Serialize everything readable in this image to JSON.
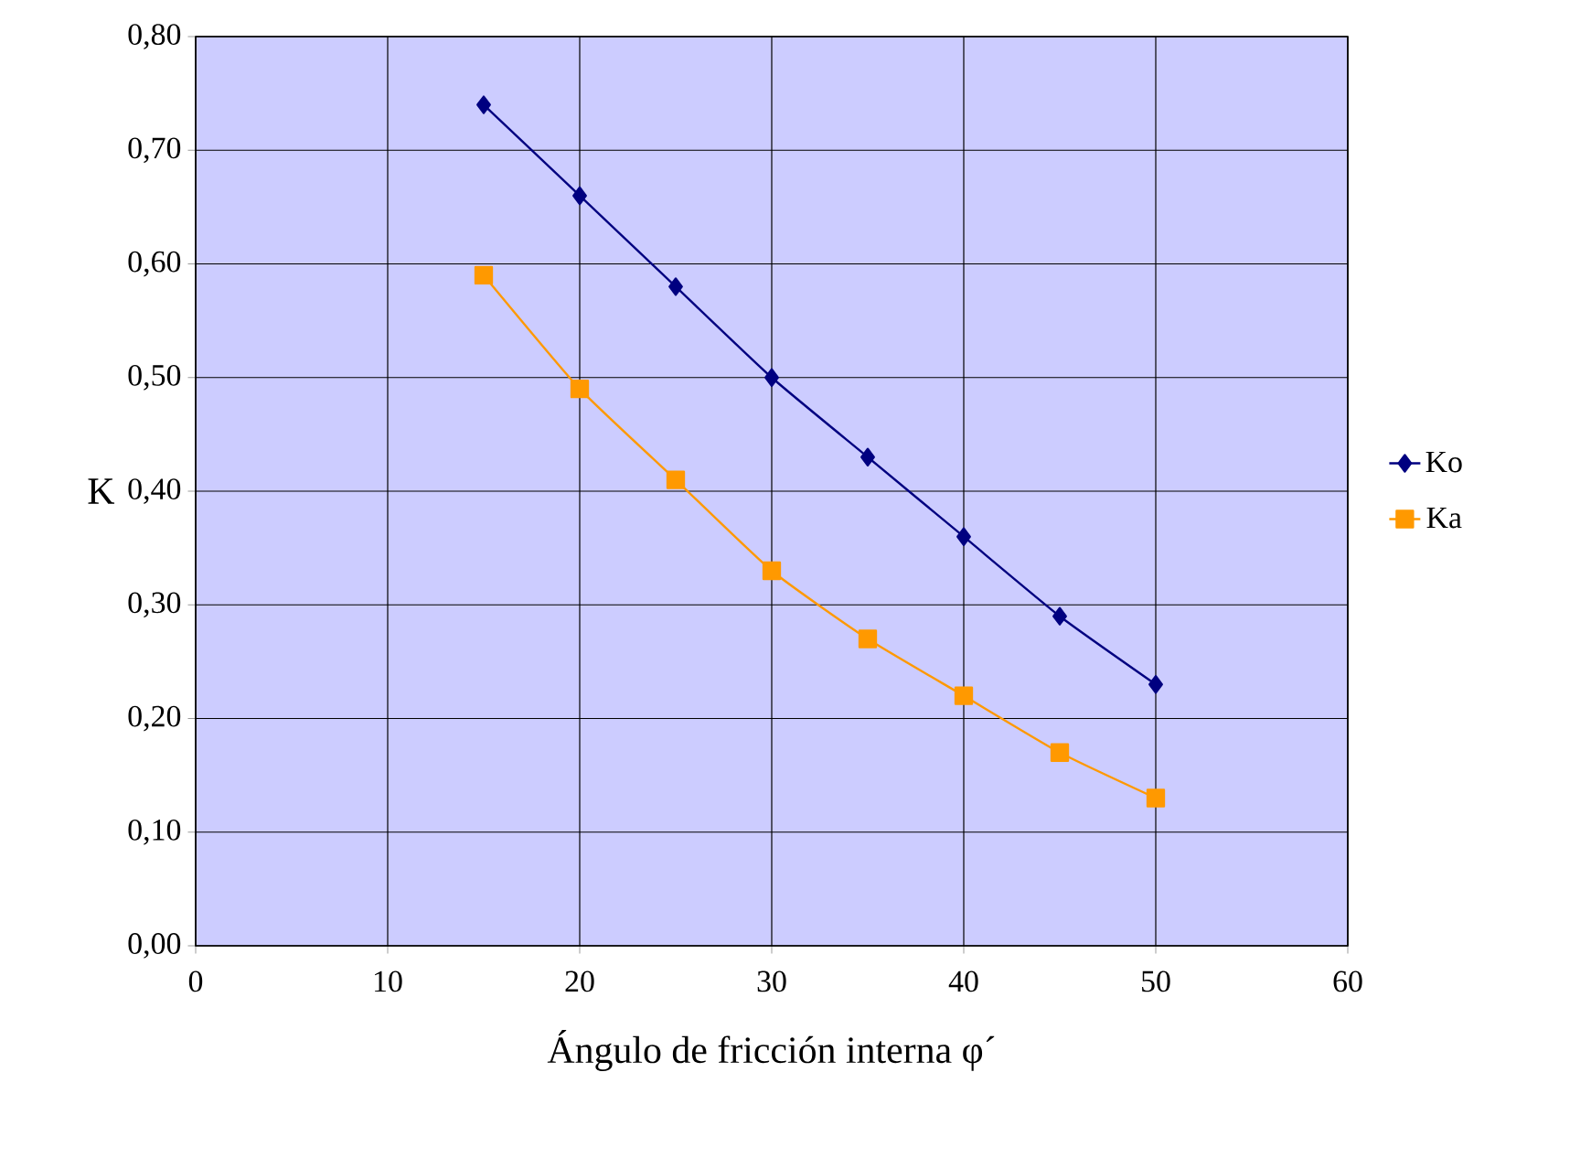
{
  "chart_data": {
    "type": "line",
    "xlabel": "Ángulo de fricción interna φ´",
    "ylabel": "K",
    "x": [
      15,
      20,
      25,
      30,
      35,
      40,
      45,
      50
    ],
    "series": [
      {
        "name": "Ko",
        "color": "#000080",
        "marker": "diamond",
        "values": [
          0.74,
          0.66,
          0.58,
          0.5,
          0.43,
          0.36,
          0.29,
          0.23
        ]
      },
      {
        "name": "Ka",
        "color": "#ff9900",
        "marker": "square",
        "values": [
          0.59,
          0.49,
          0.41,
          0.33,
          0.27,
          0.22,
          0.17,
          0.13
        ]
      }
    ],
    "xlim": [
      0,
      60
    ],
    "xticks": [
      0,
      10,
      20,
      30,
      40,
      50,
      60
    ],
    "ylim": [
      0,
      0.8
    ],
    "yticks": [
      {
        "value": 0,
        "label": "0,00"
      },
      {
        "value": 0.1,
        "label": "0,10"
      },
      {
        "value": 0.2,
        "label": "0,20"
      },
      {
        "value": 0.3,
        "label": "0,30"
      },
      {
        "value": 0.4,
        "label": "0,40"
      },
      {
        "value": 0.5,
        "label": "0,50"
      },
      {
        "value": 0.6,
        "label": "0,60"
      },
      {
        "value": 0.7,
        "label": "0,70"
      },
      {
        "value": 0.8,
        "label": "0,80"
      }
    ],
    "grid": true,
    "legend": "right",
    "line_style": "solid"
  }
}
